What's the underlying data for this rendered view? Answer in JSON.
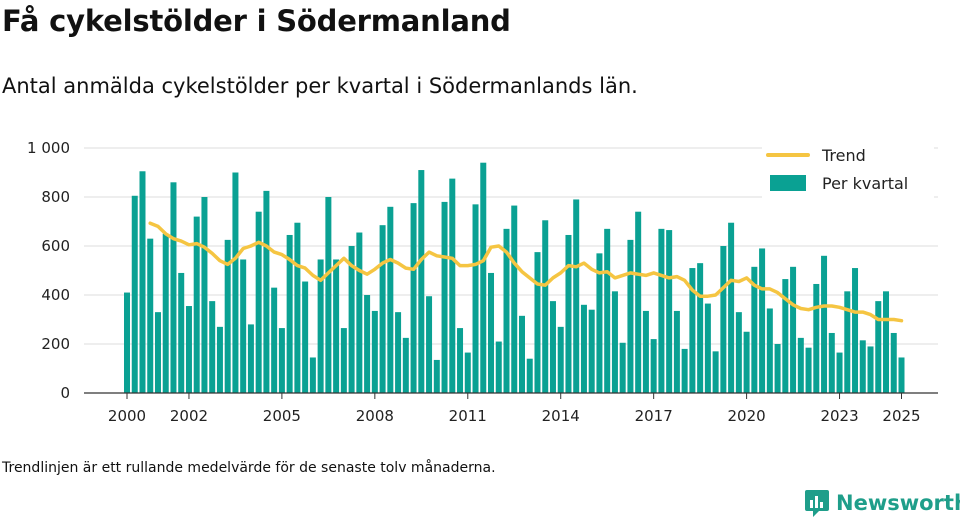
{
  "title": "Få cykelstölder i Södermanland",
  "subtitle": "Antal anmälda cykelstölder per kvartal i Södermanlands län.",
  "footnote": "Trendlinjen är ett rullande medelvärde för de senaste tolv månaderna.",
  "brand": "Newsworthy",
  "colors": {
    "bar": "#0aa193",
    "trend": "#f5c542",
    "grid": "#dddddd",
    "brand": "#1f9e8a"
  },
  "chart_data": {
    "type": "bar",
    "ylim": [
      0,
      1000
    ],
    "yticks": [
      {
        "value": 0,
        "label": "0"
      },
      {
        "value": 200,
        "label": "200"
      },
      {
        "value": 400,
        "label": "400"
      },
      {
        "value": 600,
        "label": "600"
      },
      {
        "value": 800,
        "label": "800"
      },
      {
        "value": 1000,
        "label": "1 000"
      }
    ],
    "xticks": [
      "2000",
      "2002",
      "2005",
      "2008",
      "2011",
      "2014",
      "2017",
      "2020",
      "2023",
      "2025"
    ],
    "legend": {
      "placement": "top-right",
      "trend": "Trend",
      "bars": "Per kvartal"
    },
    "grid": true,
    "series": [
      {
        "name": "Per kvartal",
        "kind": "bar",
        "values": [
          410,
          805,
          905,
          630,
          330,
          650,
          860,
          490,
          355,
          720,
          800,
          375,
          270,
          625,
          900,
          545,
          280,
          740,
          825,
          430,
          265,
          645,
          695,
          455,
          145,
          545,
          800,
          545,
          265,
          600,
          655,
          400,
          335,
          685,
          760,
          330,
          225,
          775,
          910,
          395,
          135,
          780,
          875,
          265,
          165,
          770,
          940,
          490,
          210,
          670,
          765,
          315,
          140,
          575,
          705,
          375,
          270,
          645,
          790,
          360,
          340,
          570,
          670,
          415,
          205,
          625,
          740,
          335,
          220,
          670,
          665,
          335,
          180,
          510,
          530,
          365,
          170,
          600,
          695,
          330,
          250,
          515,
          590,
          345,
          200,
          465,
          515,
          225,
          185,
          445,
          560,
          245,
          165,
          415,
          510,
          215,
          190,
          375,
          415,
          245,
          145
        ]
      },
      {
        "name": "Trend",
        "kind": "line",
        "values": [
          null,
          null,
          null,
          693,
          680,
          650,
          630,
          620,
          605,
          610,
          595,
          570,
          540,
          525,
          550,
          590,
          600,
          615,
          600,
          575,
          565,
          545,
          520,
          510,
          480,
          460,
          490,
          520,
          550,
          520,
          500,
          485,
          505,
          530,
          545,
          530,
          510,
          505,
          545,
          575,
          560,
          555,
          550,
          520,
          520,
          525,
          540,
          595,
          600,
          575,
          530,
          495,
          470,
          445,
          440,
          470,
          490,
          520,
          515,
          530,
          505,
          490,
          495,
          470,
          480,
          490,
          485,
          480,
          490,
          480,
          470,
          475,
          460,
          420,
          395,
          395,
          400,
          430,
          460,
          455,
          470,
          440,
          425,
          425,
          410,
          385,
          360,
          345,
          340,
          350,
          355,
          355,
          350,
          340,
          330,
          330,
          320,
          300,
          300,
          300,
          295
        ]
      }
    ]
  }
}
